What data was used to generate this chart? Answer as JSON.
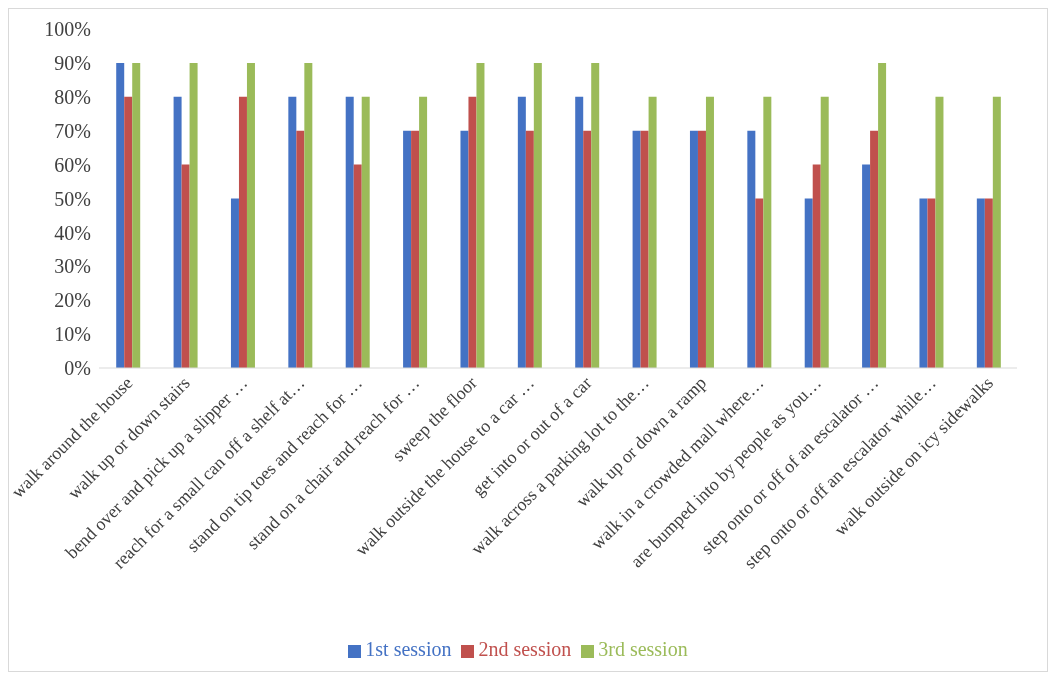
{
  "chart_data": {
    "type": "bar",
    "categories": [
      "walk around the house",
      "walk up or down stairs",
      "bend over and pick up a slipper …",
      "reach for a small can off a shelf at…",
      "stand on tip toes and reach for …",
      "stand on a chair and reach for …",
      "sweep the floor",
      "walk outside the house to a car …",
      "get into or out of a car",
      "walk across a parking lot to the…",
      "walk up or down a ramp",
      "walk in a crowded mall where…",
      "are bumped into by people as you…",
      "step onto or off of an escalator …",
      "step onto or off an escalator while…",
      "walk outside on icy sidewalks"
    ],
    "series": [
      {
        "name": "1st session",
        "color": "#4472c4",
        "values": [
          90,
          80,
          50,
          80,
          80,
          70,
          70,
          80,
          80,
          70,
          70,
          70,
          50,
          60,
          50,
          50
        ]
      },
      {
        "name": "2nd session",
        "color": "#c0504d",
        "values": [
          80,
          60,
          80,
          70,
          60,
          70,
          80,
          70,
          70,
          70,
          70,
          50,
          60,
          70,
          50,
          50
        ]
      },
      {
        "name": "3rd session",
        "color": "#9bbb59",
        "values": [
          90,
          90,
          90,
          90,
          80,
          80,
          90,
          90,
          90,
          80,
          80,
          80,
          80,
          90,
          80,
          80
        ]
      }
    ],
    "ylim": [
      0,
      100
    ],
    "yticks": [
      {
        "value": 0,
        "label": "0%"
      },
      {
        "value": 10,
        "label": "10%"
      },
      {
        "value": 20,
        "label": "20%"
      },
      {
        "value": 30,
        "label": "30%"
      },
      {
        "value": 40,
        "label": "40%"
      },
      {
        "value": 50,
        "label": "50%"
      },
      {
        "value": 60,
        "label": "60%"
      },
      {
        "value": 70,
        "label": "70%"
      },
      {
        "value": 80,
        "label": "80%"
      },
      {
        "value": 90,
        "label": "90%"
      },
      {
        "value": 100,
        "label": "100%"
      }
    ],
    "grid": false,
    "legend": "bottom"
  }
}
